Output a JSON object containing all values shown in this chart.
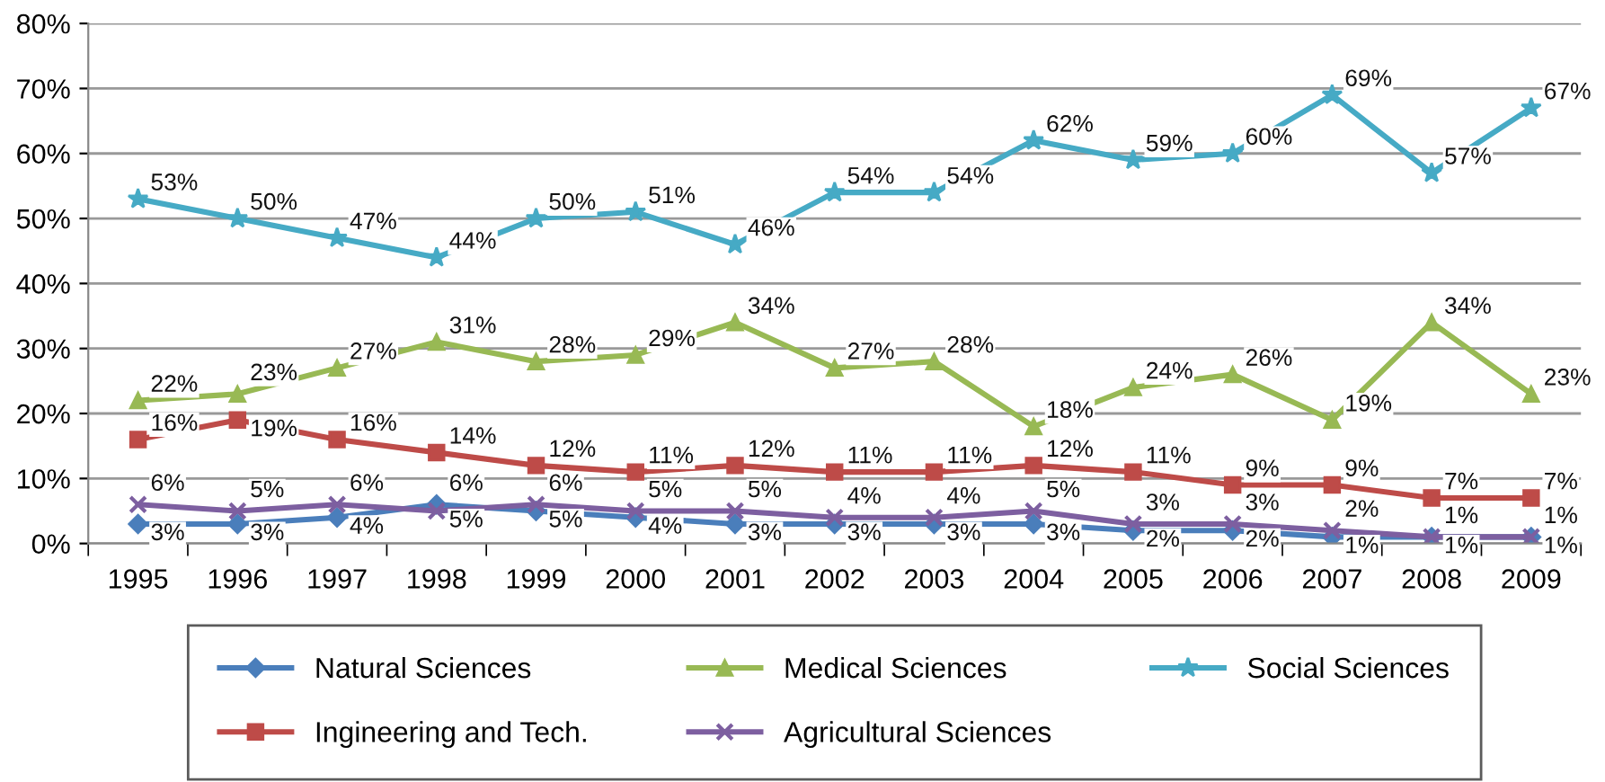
{
  "chart_data": {
    "type": "line",
    "categories": [
      "1995",
      "1996",
      "1997",
      "1998",
      "1999",
      "2000",
      "2001",
      "2002",
      "2003",
      "2004",
      "2005",
      "2006",
      "2007",
      "2008",
      "2009"
    ],
    "series": [
      {
        "name": "Natural Sciences",
        "color": "#4a7ebb",
        "marker": "diamond",
        "values": [
          3,
          3,
          4,
          6,
          5,
          4,
          3,
          3,
          3,
          3,
          2,
          2,
          1,
          1,
          1
        ],
        "value_labels": [
          "3%",
          "3%",
          "4%",
          "6%",
          "5%",
          "4%",
          "3%",
          "3%",
          "3%",
          "3%",
          "2%",
          "2%",
          "1%",
          "1%",
          "1%"
        ]
      },
      {
        "name": "Ingineering and Tech.",
        "color": "#be4b48",
        "marker": "square",
        "values": [
          16,
          19,
          16,
          14,
          12,
          11,
          12,
          11,
          11,
          12,
          11,
          9,
          9,
          7,
          7
        ],
        "value_labels": [
          "16%",
          "19%",
          "16%",
          "14%",
          "12%",
          "11%",
          "12%",
          "11%",
          "11%",
          "12%",
          "11%",
          "9%",
          "9%",
          "7%",
          "7%"
        ]
      },
      {
        "name": "Medical Sciences",
        "color": "#98b954",
        "marker": "triangle",
        "values": [
          22,
          23,
          27,
          31,
          28,
          29,
          34,
          27,
          28,
          18,
          24,
          26,
          19,
          34,
          23
        ],
        "value_labels": [
          "22%",
          "23%",
          "27%",
          "31%",
          "28%",
          "29%",
          "34%",
          "27%",
          "28%",
          "18%",
          "24%",
          "26%",
          "19%",
          "34%",
          "23%"
        ]
      },
      {
        "name": "Agricultural Sciences",
        "color": "#7d5fa0",
        "marker": "cross",
        "values": [
          6,
          5,
          6,
          5,
          6,
          5,
          5,
          4,
          4,
          5,
          3,
          3,
          2,
          1,
          1
        ],
        "value_labels": [
          "6%",
          "5%",
          "6%",
          "5%",
          "6%",
          "5%",
          "5%",
          "4%",
          "4%",
          "5%",
          "3%",
          "3%",
          "2%",
          "1%",
          "1%"
        ]
      },
      {
        "name": "Social Sciences",
        "color": "#46aac5",
        "marker": "star",
        "values": [
          53,
          50,
          47,
          44,
          50,
          51,
          46,
          54,
          54,
          62,
          59,
          60,
          69,
          57,
          67
        ],
        "value_labels": [
          "53%",
          "50%",
          "47%",
          "44%",
          "50%",
          "51%",
          "46%",
          "54%",
          "54%",
          "62%",
          "59%",
          "60%",
          "69%",
          "57%",
          "67%"
        ]
      }
    ],
    "ylim": [
      0,
      80
    ],
    "yticks": [
      {
        "value": 0,
        "label": "0%"
      },
      {
        "value": 10,
        "label": "10%"
      },
      {
        "value": 20,
        "label": "20%"
      },
      {
        "value": 30,
        "label": "30%"
      },
      {
        "value": 40,
        "label": "40%"
      },
      {
        "value": 50,
        "label": "50%"
      },
      {
        "value": 60,
        "label": "60%"
      },
      {
        "value": 70,
        "label": "70%"
      },
      {
        "value": 80,
        "label": "80%"
      }
    ],
    "grid": "y",
    "legend": "bottom",
    "line_style": "solid"
  }
}
